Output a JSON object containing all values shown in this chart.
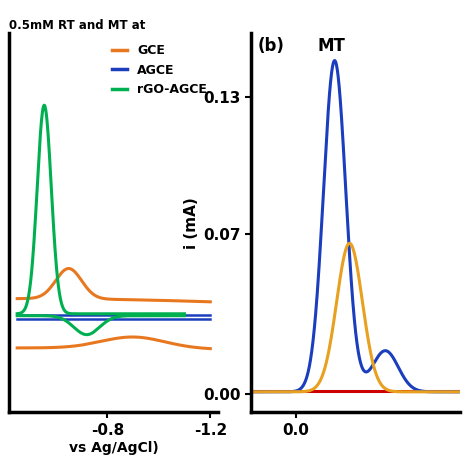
{
  "title_left": "0.5mM RT and MT at",
  "panel_b_label": "(b)",
  "panel_b_annotation": "MT",
  "ylabel_b": "i (mA)",
  "yticks_b": [
    0.0,
    0.07,
    0.13
  ],
  "xtick_b": 0.0,
  "ylim_b": [
    -0.008,
    0.158
  ],
  "xlim_b": [
    -0.06,
    0.22
  ],
  "legend_labels": [
    "GCE",
    "AGCE",
    "rGO-AGCE"
  ],
  "legend_colors": [
    "#E87820",
    "#1a3ebd",
    "#00b050"
  ],
  "xtick_a_labels": [
    "-0.8",
    "-1.2"
  ],
  "xlabel_a": "vs Ag/AgCl)",
  "color_red": "#cc0000",
  "color_yellow": "#E8A020",
  "color_blue": "#1a3ebd",
  "background_color": "#ffffff"
}
